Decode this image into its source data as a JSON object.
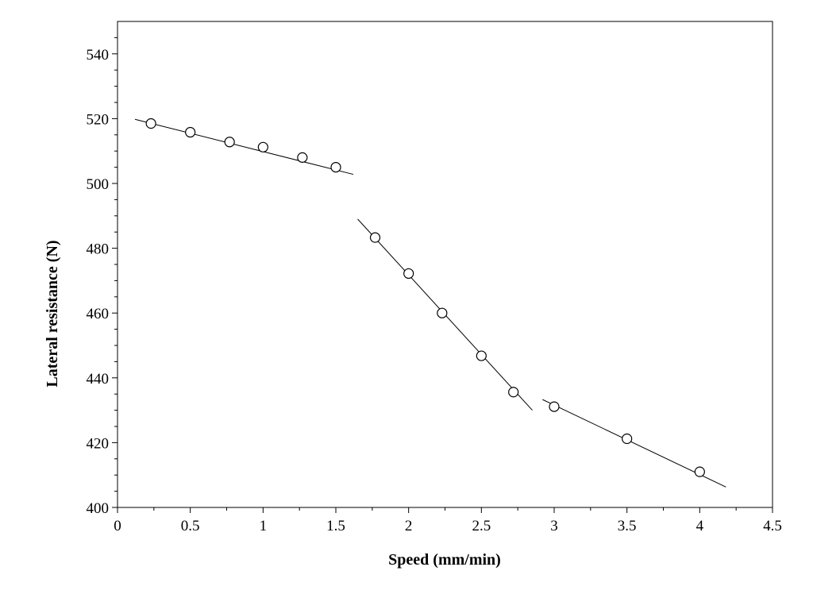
{
  "chart_data": {
    "type": "scatter",
    "title": "",
    "xlabel": "Speed (mm/min)",
    "ylabel": "Lateral resistance (N)",
    "xlim": [
      0,
      4.5
    ],
    "ylim": [
      400,
      550
    ],
    "xticks": [
      0,
      0.5,
      1,
      1.5,
      2,
      2.5,
      3,
      3.5,
      4,
      4.5
    ],
    "xtick_labels": [
      "0",
      "0.5",
      "1",
      "1.5",
      "2",
      "2.5",
      "3",
      "3.5",
      "4",
      "4.5"
    ],
    "yticks": [
      400,
      420,
      440,
      460,
      480,
      500,
      520,
      540
    ],
    "ytick_labels": [
      "400",
      "420",
      "440",
      "460",
      "480",
      "500",
      "520",
      "540"
    ],
    "grid": false,
    "legend": "none",
    "marker": "open-circle",
    "series": [
      {
        "x": [
          0.23,
          0.5,
          0.77,
          1.0,
          1.27,
          1.5
        ],
        "y": [
          518.5,
          515.8,
          512.8,
          511.2,
          508.0,
          505.0
        ]
      },
      {
        "x": [
          1.77,
          2.0,
          2.23,
          2.5,
          2.72
        ],
        "y": [
          483.3,
          472.2,
          460.0,
          446.8,
          435.6
        ]
      },
      {
        "x": [
          3.0,
          3.5,
          4.0
        ],
        "y": [
          431.1,
          421.2,
          411.0
        ]
      }
    ],
    "fit_lines": [
      {
        "x": [
          0.12,
          1.62
        ],
        "y": [
          519.8,
          502.8
        ]
      },
      {
        "x": [
          1.65,
          2.85
        ],
        "y": [
          489.0,
          430.0
        ]
      },
      {
        "x": [
          2.92,
          4.18
        ],
        "y": [
          433.3,
          406.3
        ]
      }
    ]
  }
}
